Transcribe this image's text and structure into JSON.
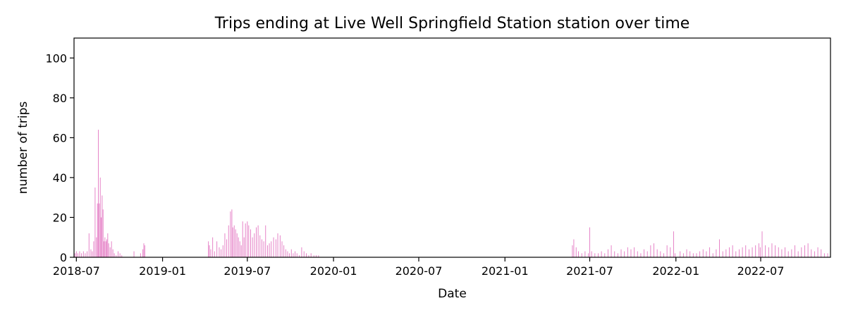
{
  "chart_data": {
    "type": "bar",
    "title": "Trips ending at Live Well Springfield Station station over time",
    "xlabel": "Date",
    "ylabel": "number of trips",
    "xlim": [
      "2018-06-26",
      "2022-11-27"
    ],
    "ylim": [
      0,
      110
    ],
    "x_ticks": [
      "2018-07",
      "2019-01",
      "2019-07",
      "2020-01",
      "2020-07",
      "2021-01",
      "2021-07",
      "2022-01",
      "2022-07"
    ],
    "y_ticks": [
      0,
      20,
      40,
      60,
      80,
      100
    ],
    "grid": false,
    "bar_color": "#e377c2",
    "x": [
      "2018-06-28",
      "2018-07-01",
      "2018-07-04",
      "2018-07-08",
      "2018-07-12",
      "2018-07-16",
      "2018-07-20",
      "2018-07-24",
      "2018-07-28",
      "2018-08-01",
      "2018-08-04",
      "2018-08-07",
      "2018-08-10",
      "2018-08-13",
      "2018-08-15",
      "2018-08-17",
      "2018-08-19",
      "2018-08-21",
      "2018-08-23",
      "2018-08-25",
      "2018-08-27",
      "2018-08-29",
      "2018-08-31",
      "2018-09-02",
      "2018-09-04",
      "2018-09-06",
      "2018-09-08",
      "2018-09-11",
      "2018-09-14",
      "2018-09-17",
      "2018-09-20",
      "2018-09-24",
      "2018-09-28",
      "2018-10-02",
      "2018-10-06",
      "2018-11-01",
      "2018-11-15",
      "2018-11-20",
      "2018-11-22",
      "2018-11-24",
      "2019-04-09",
      "2019-04-11",
      "2019-04-14",
      "2019-04-18",
      "2019-04-22",
      "2019-04-27",
      "2019-05-02",
      "2019-05-06",
      "2019-05-10",
      "2019-05-14",
      "2019-05-18",
      "2019-05-22",
      "2019-05-26",
      "2019-05-29",
      "2019-05-31",
      "2019-06-03",
      "2019-06-06",
      "2019-06-09",
      "2019-06-12",
      "2019-06-15",
      "2019-06-18",
      "2019-06-21",
      "2019-06-24",
      "2019-06-27",
      "2019-07-01",
      "2019-07-04",
      "2019-07-08",
      "2019-07-12",
      "2019-07-16",
      "2019-07-20",
      "2019-07-24",
      "2019-07-28",
      "2019-08-01",
      "2019-08-05",
      "2019-08-09",
      "2019-08-13",
      "2019-08-17",
      "2019-08-21",
      "2019-08-26",
      "2019-08-31",
      "2019-09-04",
      "2019-09-09",
      "2019-09-13",
      "2019-09-17",
      "2019-09-21",
      "2019-09-25",
      "2019-09-29",
      "2019-10-03",
      "2019-10-07",
      "2019-10-11",
      "2019-10-15",
      "2019-10-20",
      "2019-10-25",
      "2019-10-30",
      "2019-11-04",
      "2019-11-09",
      "2019-11-14",
      "2019-11-20",
      "2019-11-25",
      "2019-11-30",
      "2021-05-25",
      "2021-05-28",
      "2021-06-02",
      "2021-06-07",
      "2021-06-14",
      "2021-06-21",
      "2021-06-28",
      "2021-07-01",
      "2021-07-05",
      "2021-07-12",
      "2021-07-19",
      "2021-07-26",
      "2021-08-02",
      "2021-08-09",
      "2021-08-16",
      "2021-08-23",
      "2021-08-30",
      "2021-09-06",
      "2021-09-13",
      "2021-09-20",
      "2021-09-27",
      "2021-10-04",
      "2021-10-11",
      "2021-10-18",
      "2021-10-25",
      "2021-11-01",
      "2021-11-08",
      "2021-11-15",
      "2021-11-22",
      "2021-11-29",
      "2021-12-06",
      "2021-12-13",
      "2021-12-20",
      "2021-12-27",
      "2021-12-30",
      "2022-01-10",
      "2022-01-17",
      "2022-01-24",
      "2022-01-31",
      "2022-02-07",
      "2022-02-14",
      "2022-02-21",
      "2022-02-28",
      "2022-03-07",
      "2022-03-14",
      "2022-03-21",
      "2022-03-28",
      "2022-04-04",
      "2022-04-11",
      "2022-04-18",
      "2022-04-25",
      "2022-05-02",
      "2022-05-09",
      "2022-05-16",
      "2022-05-23",
      "2022-05-30",
      "2022-06-06",
      "2022-06-13",
      "2022-06-20",
      "2022-06-27",
      "2022-06-30",
      "2022-07-04",
      "2022-07-11",
      "2022-07-18",
      "2022-07-25",
      "2022-08-01",
      "2022-08-08",
      "2022-08-15",
      "2022-08-22",
      "2022-08-29",
      "2022-09-05",
      "2022-09-12",
      "2022-09-19",
      "2022-09-26",
      "2022-10-03",
      "2022-10-10",
      "2022-10-17",
      "2022-10-24",
      "2022-10-31",
      "2022-11-07",
      "2022-11-14",
      "2022-11-21"
    ],
    "values": [
      2,
      3,
      2,
      3,
      2,
      3,
      2,
      3,
      12,
      4,
      3,
      8,
      35,
      10,
      27,
      64,
      27,
      40,
      20,
      31,
      24,
      8,
      10,
      8,
      9,
      12,
      7,
      5,
      8,
      4,
      2,
      1,
      3,
      2,
      1,
      3,
      2,
      4,
      7,
      6,
      8,
      6,
      4,
      10,
      3,
      8,
      5,
      4,
      6,
      12,
      9,
      16,
      23,
      24,
      15,
      16,
      14,
      12,
      10,
      8,
      6,
      18,
      10,
      17,
      18,
      16,
      14,
      10,
      12,
      15,
      16,
      11,
      9,
      8,
      16,
      6,
      7,
      8,
      10,
      9,
      12,
      11,
      8,
      6,
      4,
      3,
      2,
      4,
      2,
      3,
      2,
      1,
      5,
      3,
      2,
      1,
      2,
      1,
      1,
      1,
      6,
      9,
      5,
      3,
      2,
      3,
      2,
      15,
      3,
      2,
      2,
      3,
      2,
      4,
      6,
      3,
      2,
      4,
      3,
      5,
      4,
      5,
      3,
      2,
      4,
      3,
      6,
      7,
      4,
      3,
      2,
      6,
      5,
      13,
      2,
      3,
      2,
      4,
      3,
      2,
      2,
      3,
      4,
      3,
      5,
      2,
      4,
      9,
      3,
      4,
      5,
      6,
      3,
      4,
      5,
      6,
      4,
      5,
      6,
      7,
      5,
      13,
      6,
      5,
      7,
      6,
      5,
      4,
      5,
      3,
      4,
      6,
      3,
      5,
      6,
      7,
      4,
      3,
      5,
      4,
      2,
      2
    ]
  }
}
